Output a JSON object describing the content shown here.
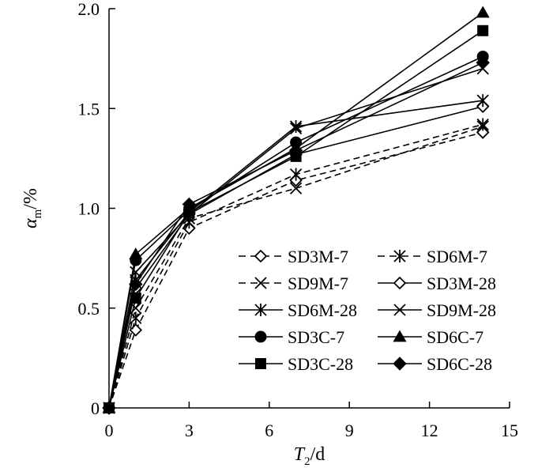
{
  "chart_data": {
    "type": "line",
    "title": "",
    "xlabel": {
      "main": "T",
      "sub": "2",
      "rest": "/d"
    },
    "ylabel": {
      "main": "α",
      "sub": "m",
      "rest": "/%"
    },
    "xlim": [
      0,
      15
    ],
    "ylim": [
      0,
      2.0
    ],
    "xticks": [
      0,
      3,
      6,
      9,
      12,
      15
    ],
    "yticks": [
      0,
      0.5,
      1.0,
      1.5,
      2.0
    ],
    "xtick_labels": [
      "0",
      "3",
      "6",
      "9",
      "12",
      "15"
    ],
    "ytick_labels": [
      "0",
      "0.5",
      "1.0",
      "1.5",
      "2.0"
    ],
    "grid": false,
    "legend_position": "bottom-right",
    "x": [
      0,
      1,
      3,
      7,
      14
    ],
    "series": [
      {
        "name": "SD3M-7",
        "values": [
          0,
          0.39,
          0.9,
          1.14,
          1.38
        ],
        "marker": "diamond-open",
        "dashed": true
      },
      {
        "name": "SD6M-7",
        "values": [
          0,
          0.45,
          0.93,
          1.17,
          1.42
        ],
        "marker": "asterisk",
        "dashed": true
      },
      {
        "name": "SD9M-7",
        "values": [
          0,
          0.5,
          0.95,
          1.1,
          1.41
        ],
        "marker": "x",
        "dashed": true
      },
      {
        "name": "SD3M-28",
        "values": [
          0,
          0.6,
          0.97,
          1.27,
          1.51
        ],
        "marker": "diamond-open",
        "dashed": false
      },
      {
        "name": "SD6M-28",
        "values": [
          0,
          0.64,
          0.98,
          1.41,
          1.54
        ],
        "marker": "asterisk",
        "dashed": false
      },
      {
        "name": "SD9M-28",
        "values": [
          0,
          0.68,
          0.97,
          1.4,
          1.7
        ],
        "marker": "x",
        "dashed": false
      },
      {
        "name": "SD3C-7",
        "values": [
          0,
          0.74,
          0.99,
          1.33,
          1.76
        ],
        "marker": "circle",
        "dashed": false
      },
      {
        "name": "SD6C-7",
        "values": [
          0,
          0.77,
          1.0,
          1.3,
          1.98
        ],
        "marker": "triangle",
        "dashed": false
      },
      {
        "name": "SD3C-28",
        "values": [
          0,
          0.55,
          0.98,
          1.26,
          1.89
        ],
        "marker": "square",
        "dashed": false
      },
      {
        "name": "SD6C-28",
        "values": [
          0,
          0.62,
          1.02,
          1.29,
          1.73
        ],
        "marker": "diamond",
        "dashed": false
      }
    ]
  }
}
